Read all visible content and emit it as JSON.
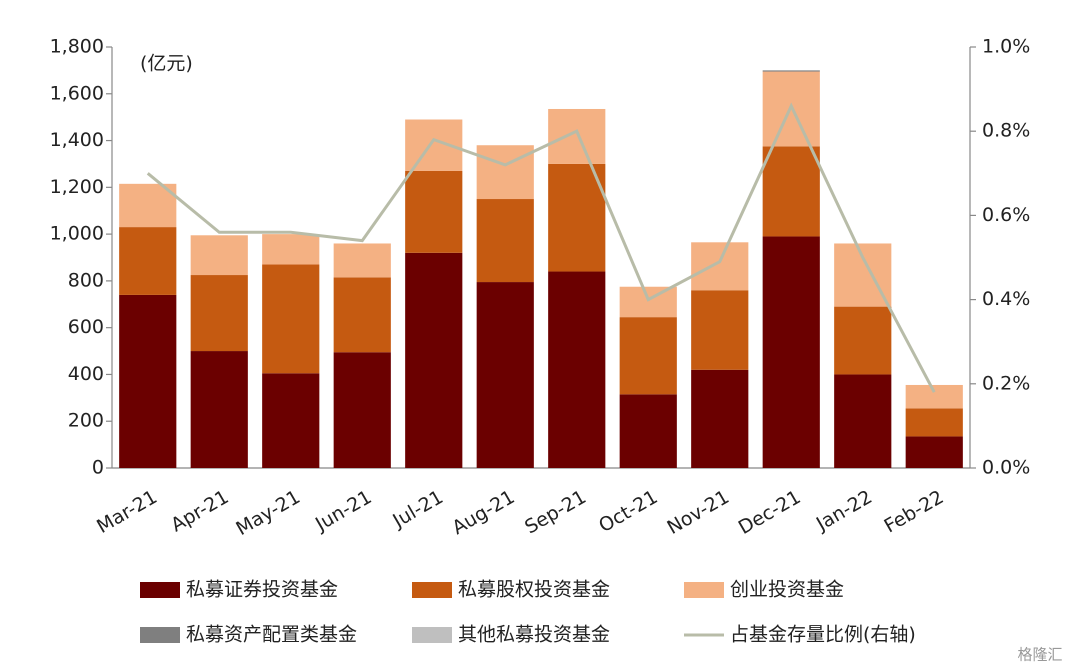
{
  "chart_data": {
    "type": "bar",
    "stacked": true,
    "unit_label": "(亿元)",
    "watermark": "格隆汇",
    "categories": [
      "Mar-21",
      "Apr-21",
      "May-21",
      "Jun-21",
      "Jul-21",
      "Aug-21",
      "Sep-21",
      "Oct-21",
      "Nov-21",
      "Dec-21",
      "Jan-22",
      "Feb-22"
    ],
    "series": [
      {
        "name": "私募证券投资基金",
        "color": "#6b0000",
        "values": [
          740,
          500,
          405,
          495,
          920,
          795,
          840,
          315,
          420,
          990,
          400,
          135
        ]
      },
      {
        "name": "私募股权投资基金",
        "color": "#c55a11",
        "values": [
          290,
          325,
          465,
          320,
          350,
          355,
          460,
          330,
          340,
          385,
          290,
          120
        ]
      },
      {
        "name": "创业投资基金",
        "color": "#f4b183",
        "values": [
          185,
          170,
          130,
          145,
          220,
          230,
          235,
          130,
          205,
          320,
          270,
          100
        ]
      },
      {
        "name": "私募资产配置类基金",
        "color": "#7f7f7f",
        "values": [
          0,
          0,
          0,
          0,
          0,
          0,
          0,
          0,
          0,
          5,
          0,
          0
        ]
      },
      {
        "name": "其他私募投资基金",
        "color": "#bfbfbf",
        "values": [
          0,
          0,
          0,
          0,
          0,
          0,
          0,
          0,
          0,
          0,
          0,
          0
        ]
      },
      {
        "name": "占基金存量比例(右轴)",
        "color": "#b8bca8",
        "type": "line",
        "axis": "y2",
        "values": [
          0.7,
          0.56,
          0.56,
          0.54,
          0.78,
          0.72,
          0.8,
          0.4,
          0.49,
          0.86,
          0.5,
          0.18
        ]
      }
    ],
    "ylim": [
      0,
      1800
    ],
    "yticks": [
      0,
      200,
      400,
      600,
      800,
      {
        "value": 1000,
        "label": "1,000"
      },
      {
        "value": 1200,
        "label": "1,200"
      },
      {
        "value": 1400,
        "label": "1,400"
      },
      {
        "value": 1600,
        "label": "1,600"
      },
      {
        "value": 1800,
        "label": "1,800"
      }
    ],
    "y2lim": [
      0,
      1.0
    ],
    "y2ticks": [
      {
        "value": 0,
        "label": "0.0%"
      },
      {
        "value": 0.2,
        "label": "0.2%"
      },
      {
        "value": 0.4,
        "label": "0.4%"
      },
      {
        "value": 0.6,
        "label": "0.6%"
      },
      {
        "value": 0.8,
        "label": "0.8%"
      },
      {
        "value": 1.0,
        "label": "1.0%"
      }
    ],
    "grid": false
  }
}
